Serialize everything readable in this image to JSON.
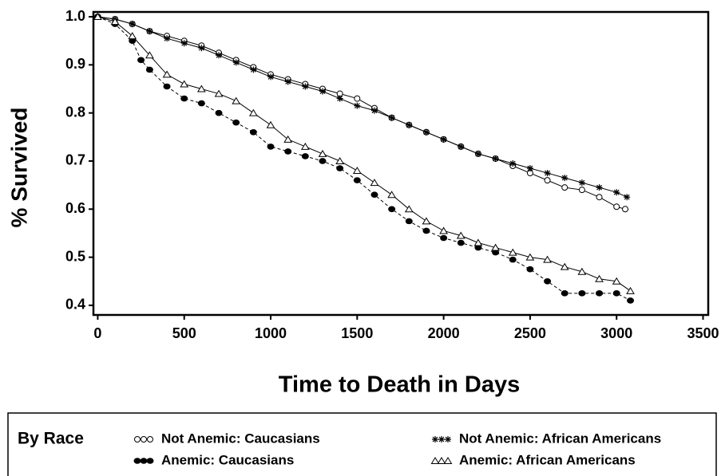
{
  "chart_data": {
    "type": "line",
    "x_label": "Time to Death in Days",
    "y_label": "% Survived",
    "legend_title": "By Race",
    "xlim": [
      -25,
      3530
    ],
    "ylim": [
      0.38,
      1.01
    ],
    "xticks": [
      0,
      500,
      1000,
      1500,
      2000,
      2500,
      3000,
      3500
    ],
    "yticks": [
      {
        "value": 0.4,
        "label": "0.4"
      },
      {
        "value": 0.5,
        "label": "0.5"
      },
      {
        "value": 0.6,
        "label": "0.6"
      },
      {
        "value": 0.7,
        "label": "0.7"
      },
      {
        "value": 0.8,
        "label": "0.8"
      },
      {
        "value": 0.9,
        "label": "0.9"
      },
      {
        "value": 1.0,
        "label": "1.0"
      }
    ],
    "series": [
      {
        "name": "Not Anemic: Caucasians",
        "marker": "open-circle",
        "color": "#000000",
        "x": [
          0,
          100,
          200,
          300,
          400,
          500,
          600,
          700,
          800,
          900,
          1000,
          1100,
          1200,
          1300,
          1400,
          1500,
          1600,
          1700,
          1800,
          1900,
          2000,
          2100,
          2200,
          2300,
          2400,
          2500,
          2600,
          2700,
          2800,
          2900,
          3000,
          3050
        ],
        "values": [
          1.0,
          0.995,
          0.985,
          0.97,
          0.96,
          0.95,
          0.94,
          0.925,
          0.91,
          0.895,
          0.88,
          0.87,
          0.86,
          0.85,
          0.84,
          0.83,
          0.81,
          0.79,
          0.775,
          0.76,
          0.745,
          0.73,
          0.715,
          0.705,
          0.69,
          0.675,
          0.66,
          0.645,
          0.64,
          0.625,
          0.605,
          0.6
        ]
      },
      {
        "name": "Anemic: Caucasians",
        "marker": "filled-circle",
        "color": "#000000",
        "x": [
          0,
          100,
          200,
          250,
          300,
          400,
          500,
          600,
          700,
          800,
          900,
          1000,
          1100,
          1200,
          1300,
          1400,
          1500,
          1600,
          1700,
          1800,
          1900,
          2000,
          2100,
          2200,
          2300,
          2400,
          2500,
          2600,
          2700,
          2800,
          2900,
          3000,
          3080
        ],
        "values": [
          1.0,
          0.985,
          0.95,
          0.91,
          0.89,
          0.855,
          0.83,
          0.82,
          0.8,
          0.78,
          0.76,
          0.73,
          0.72,
          0.71,
          0.7,
          0.685,
          0.66,
          0.63,
          0.6,
          0.575,
          0.555,
          0.54,
          0.53,
          0.52,
          0.51,
          0.495,
          0.475,
          0.45,
          0.425,
          0.425,
          0.425,
          0.425,
          0.41
        ]
      },
      {
        "name": "Not Anemic: African Americans",
        "marker": "star",
        "color": "#000000",
        "x": [
          0,
          100,
          200,
          300,
          400,
          500,
          600,
          700,
          800,
          900,
          1000,
          1100,
          1200,
          1300,
          1400,
          1500,
          1600,
          1700,
          1800,
          1900,
          2000,
          2100,
          2200,
          2300,
          2400,
          2500,
          2600,
          2700,
          2800,
          2900,
          3000,
          3060
        ],
        "values": [
          1.0,
          0.995,
          0.985,
          0.97,
          0.955,
          0.945,
          0.935,
          0.92,
          0.905,
          0.89,
          0.875,
          0.865,
          0.855,
          0.845,
          0.83,
          0.815,
          0.805,
          0.79,
          0.775,
          0.76,
          0.745,
          0.73,
          0.715,
          0.705,
          0.695,
          0.685,
          0.675,
          0.665,
          0.655,
          0.645,
          0.635,
          0.625
        ]
      },
      {
        "name": "Anemic: African Americans",
        "marker": "open-triangle",
        "color": "#000000",
        "x": [
          0,
          100,
          200,
          300,
          400,
          500,
          600,
          700,
          800,
          900,
          1000,
          1100,
          1200,
          1300,
          1400,
          1500,
          1600,
          1700,
          1800,
          1900,
          2000,
          2100,
          2200,
          2300,
          2400,
          2500,
          2600,
          2700,
          2800,
          2900,
          3000,
          3080
        ],
        "values": [
          1.0,
          0.99,
          0.96,
          0.92,
          0.88,
          0.86,
          0.85,
          0.84,
          0.825,
          0.8,
          0.775,
          0.745,
          0.73,
          0.715,
          0.7,
          0.68,
          0.655,
          0.63,
          0.6,
          0.575,
          0.555,
          0.545,
          0.53,
          0.52,
          0.51,
          0.5,
          0.495,
          0.48,
          0.47,
          0.455,
          0.45,
          0.43
        ]
      }
    ]
  }
}
